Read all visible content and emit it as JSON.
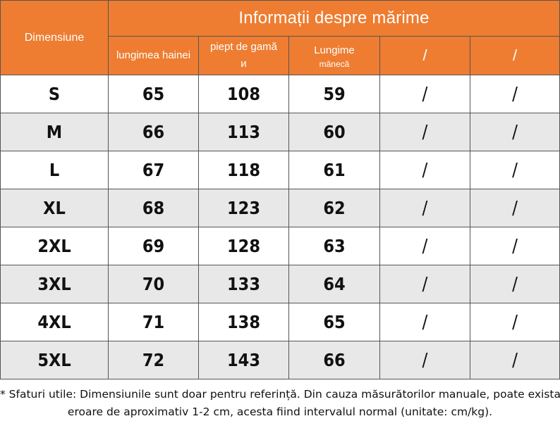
{
  "table": {
    "header": {
      "dimension_label": "Dimensiune",
      "title": "Informații despre mărime",
      "columns": [
        {
          "line1": "lungimea hainei",
          "line2": ""
        },
        {
          "line1": "piept de gamă",
          "line2": "и"
        },
        {
          "line1": "Lungime",
          "line2": "mânecă"
        },
        {
          "line1": "/",
          "line2": ""
        },
        {
          "line1": "/",
          "line2": ""
        }
      ]
    },
    "rows": [
      {
        "size": "S",
        "length": "65",
        "chest": "108",
        "sleeve": "59",
        "c4": "/",
        "c5": "/"
      },
      {
        "size": "M",
        "length": "66",
        "chest": "113",
        "sleeve": "60",
        "c4": "/",
        "c5": "/"
      },
      {
        "size": "L",
        "length": "67",
        "chest": "118",
        "sleeve": "61",
        "c4": "/",
        "c5": "/"
      },
      {
        "size": "XL",
        "length": "68",
        "chest": "123",
        "sleeve": "62",
        "c4": "/",
        "c5": "/"
      },
      {
        "size": "2XL",
        "length": "69",
        "chest": "128",
        "sleeve": "63",
        "c4": "/",
        "c5": "/"
      },
      {
        "size": "3XL",
        "length": "70",
        "chest": "133",
        "sleeve": "64",
        "c4": "/",
        "c5": "/"
      },
      {
        "size": "4XL",
        "length": "71",
        "chest": "138",
        "sleeve": "65",
        "c4": "/",
        "c5": "/"
      },
      {
        "size": "5XL",
        "length": "72",
        "chest": "143",
        "sleeve": "66",
        "c4": "/",
        "c5": "/"
      }
    ]
  },
  "note": {
    "line1": "* Sfaturi utile: Dimensiunile sunt doar pentru referință. Din cauza măsurătorilor manuale, poate exista o",
    "line2": "eroare de aproximativ 1-2 cm, acesta fiind intervalul normal (unitate: cm/kg)."
  },
  "colors": {
    "header_orange": "#ee7d31",
    "alt_row_gray": "#e8e8e8",
    "border": "#555555"
  }
}
